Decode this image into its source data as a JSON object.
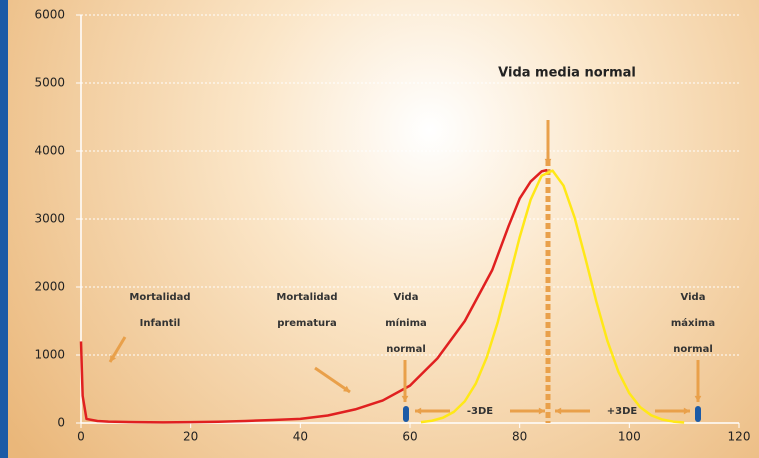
{
  "chart_data": {
    "type": "line",
    "xlim": [
      0,
      120
    ],
    "xticks": [
      0,
      20,
      40,
      60,
      80,
      100,
      120
    ],
    "ylim": [
      0,
      6000
    ],
    "yticks": [
      0,
      1000,
      2000,
      3000,
      4000,
      5000,
      6000
    ],
    "grid": true,
    "series": [
      {
        "color": "#e02020",
        "x": [
          0,
          0.3,
          1,
          3,
          5,
          10,
          15,
          20,
          25,
          30,
          35,
          40,
          45,
          50,
          55,
          60,
          65,
          70,
          75,
          78,
          80,
          82,
          84,
          85
        ],
        "values": [
          1200,
          400,
          60,
          30,
          20,
          12,
          10,
          12,
          18,
          30,
          45,
          60,
          110,
          200,
          330,
          550,
          950,
          1500,
          2250,
          2900,
          3300,
          3550,
          3700,
          3720
        ]
      },
      {
        "color": "#ffe817",
        "x": [
          62,
          64,
          66,
          68,
          70,
          72,
          74,
          76,
          78,
          80,
          82,
          84,
          86,
          88,
          90,
          92,
          94,
          96,
          98,
          100,
          102,
          104,
          106,
          108,
          110
        ],
        "values": [
          13,
          33,
          77,
          164,
          320,
          580,
          966,
          1482,
          2096,
          2732,
          3283,
          3636,
          3711,
          3490,
          3026,
          2418,
          1780,
          1208,
          755,
          437,
          231,
          113,
          51,
          21,
          8
        ]
      }
    ],
    "annotations": {
      "mean": "Vida media normal",
      "infant": [
        "Mortalidad",
        "Infantil"
      ],
      "premature": [
        "Mortalidad",
        "prematura"
      ],
      "min": [
        "Vida",
        "mínima",
        "normal"
      ],
      "max": [
        "Vida",
        "máxima",
        "normal"
      ],
      "minus": "-3DE",
      "plus": "+3DE"
    }
  }
}
